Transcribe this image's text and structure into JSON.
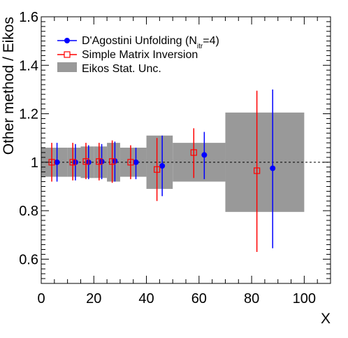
{
  "chart_data": {
    "type": "scatter",
    "xlabel": "X",
    "ylabel": "Other method / Eikos",
    "xlim": [
      0,
      110
    ],
    "ylim": [
      0.5,
      1.6
    ],
    "x_ticks": [
      0,
      20,
      40,
      60,
      80,
      100
    ],
    "y_ticks": [
      0.6,
      0.8,
      1,
      1.2,
      1.4,
      1.6
    ],
    "x_tick_labels": [
      "0",
      "20",
      "40",
      "60",
      "80",
      "100"
    ],
    "y_tick_labels": [
      "0.6",
      "0.8",
      "1",
      "1.2",
      "1.4",
      "1.6"
    ],
    "reference_line": 1.0,
    "legend": {
      "placement": "top-left",
      "entries": [
        {
          "label_main": "D'Agostini Unfolding (N",
          "label_sub": "itr",
          "label_tail": "=4)",
          "marker": "filled-circle",
          "color": "#0000ff"
        },
        {
          "label_main": "Simple Matrix Inversion",
          "label_sub": "",
          "label_tail": "",
          "marker": "open-square",
          "color": "#ff0000"
        },
        {
          "label_main": "Eikos Stat. Unc.",
          "label_sub": "",
          "label_tail": "",
          "marker": "box",
          "color": "#999999"
        }
      ]
    },
    "bands": {
      "name": "Eikos Stat. Unc.",
      "color": "#999999",
      "bins": [
        {
          "x0": 0,
          "x1": 10,
          "lo": 0.94,
          "hi": 1.06
        },
        {
          "x0": 10,
          "x1": 15,
          "lo": 0.94,
          "hi": 1.06
        },
        {
          "x0": 15,
          "x1": 20,
          "lo": 0.935,
          "hi": 1.065
        },
        {
          "x0": 20,
          "x1": 25,
          "lo": 0.935,
          "hi": 1.065
        },
        {
          "x0": 25,
          "x1": 30,
          "lo": 0.92,
          "hi": 1.08
        },
        {
          "x0": 30,
          "x1": 40,
          "lo": 0.94,
          "hi": 1.06
        },
        {
          "x0": 40,
          "x1": 50,
          "lo": 0.89,
          "hi": 1.11
        },
        {
          "x0": 50,
          "x1": 70,
          "lo": 0.92,
          "hi": 1.08
        },
        {
          "x0": 70,
          "x1": 100,
          "lo": 0.795,
          "hi": 1.205
        }
      ]
    },
    "series": [
      {
        "name": "D'Agostini Unfolding (N itr =4)",
        "color": "#0000ff",
        "marker": "filled-circle",
        "points": [
          {
            "x": 6,
            "y": 1.0,
            "lo": 0.92,
            "hi": 1.08
          },
          {
            "x": 13,
            "y": 1.0,
            "lo": 0.925,
            "hi": 1.075
          },
          {
            "x": 18,
            "y": 1.0,
            "lo": 0.93,
            "hi": 1.07
          },
          {
            "x": 23,
            "y": 1.003,
            "lo": 0.93,
            "hi": 1.075
          },
          {
            "x": 28,
            "y": 1.005,
            "lo": 0.92,
            "hi": 1.085
          },
          {
            "x": 36,
            "y": 1.0,
            "lo": 0.93,
            "hi": 1.06
          },
          {
            "x": 46,
            "y": 0.985,
            "lo": 0.86,
            "hi": 1.11
          },
          {
            "x": 62,
            "y": 1.03,
            "lo": 0.93,
            "hi": 1.125
          },
          {
            "x": 88,
            "y": 0.975,
            "lo": 0.645,
            "hi": 1.3
          }
        ]
      },
      {
        "name": "Simple Matrix Inversion",
        "color": "#ff0000",
        "marker": "open-square",
        "points": [
          {
            "x": 4,
            "y": 1.0,
            "lo": 0.92,
            "hi": 1.08
          },
          {
            "x": 12,
            "y": 1.0,
            "lo": 0.925,
            "hi": 1.08
          },
          {
            "x": 17,
            "y": 1.003,
            "lo": 0.93,
            "hi": 1.08
          },
          {
            "x": 22,
            "y": 1.003,
            "lo": 0.925,
            "hi": 1.08
          },
          {
            "x": 27,
            "y": 1.003,
            "lo": 0.915,
            "hi": 1.09
          },
          {
            "x": 34,
            "y": 1.0,
            "lo": 0.93,
            "hi": 1.07
          },
          {
            "x": 44,
            "y": 0.97,
            "lo": 0.84,
            "hi": 1.1
          },
          {
            "x": 58,
            "y": 1.04,
            "lo": 0.935,
            "hi": 1.14
          },
          {
            "x": 82,
            "y": 0.965,
            "lo": 0.63,
            "hi": 1.295
          }
        ]
      }
    ]
  }
}
